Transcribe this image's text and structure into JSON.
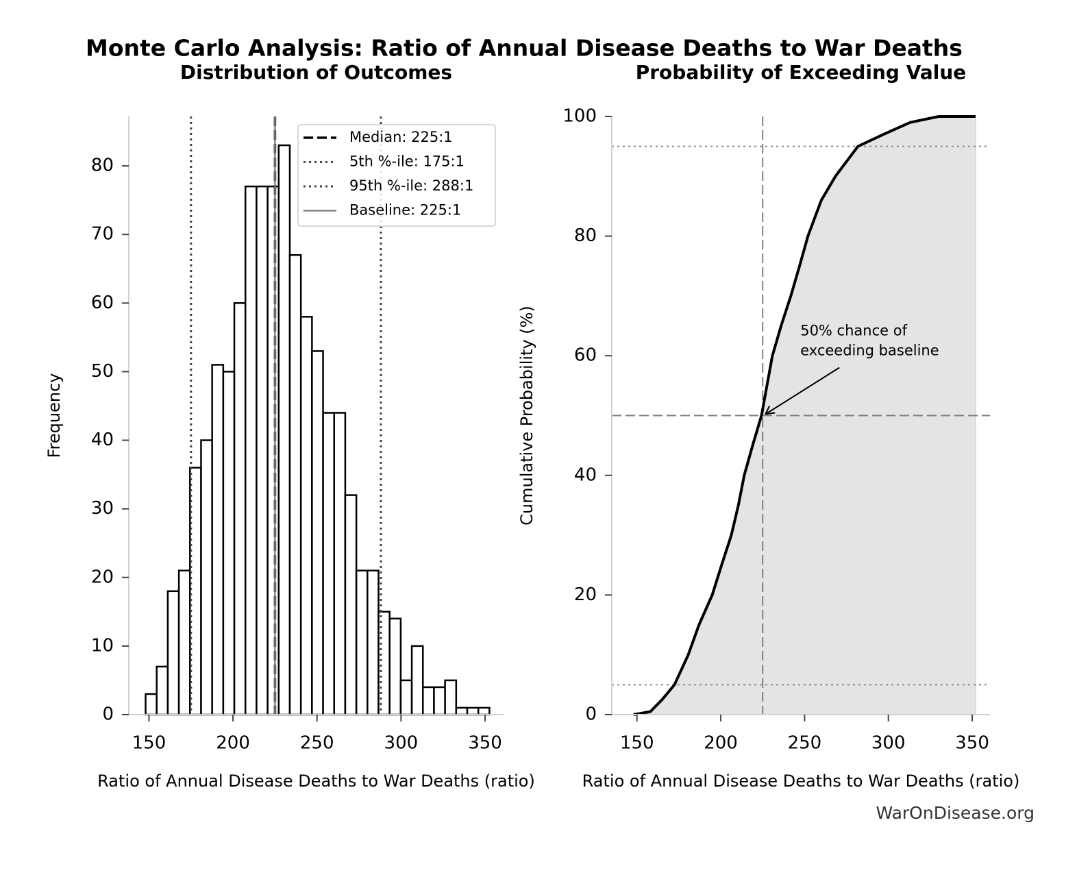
{
  "title": "Monte Carlo Analysis: Ratio of Annual Disease Deaths to War Deaths",
  "source": "WarOnDisease.org",
  "chart_data": [
    {
      "type": "histogram",
      "title": "Distribution of Outcomes",
      "xlabel": "Ratio of Annual Disease Deaths to War Deaths (ratio)",
      "ylabel": "Frequency",
      "bins": [
        148.0,
        154.6,
        161.2,
        167.8,
        174.4,
        181.0,
        187.6,
        194.2,
        200.8,
        207.4,
        214.0,
        220.6,
        227.2,
        233.8,
        240.4,
        247.0,
        253.6,
        260.2,
        266.8,
        273.4,
        280.0,
        286.6,
        293.2,
        299.8,
        306.4,
        313.0,
        319.6,
        326.2,
        332.8,
        339.4,
        346.0,
        352.6
      ],
      "values": [
        3,
        7,
        18,
        21,
        36,
        40,
        51,
        50,
        60,
        77,
        77,
        77,
        83,
        67,
        58,
        53,
        44,
        44,
        32,
        21,
        21,
        15,
        14,
        5,
        10,
        4,
        4,
        5,
        1,
        1,
        1
      ],
      "color": "#ffffff",
      "edgecolor": "#000000",
      "xlim": [
        138,
        361
      ],
      "ylim": [
        0,
        87.2
      ],
      "xticks": [
        150,
        200,
        250,
        300,
        350
      ],
      "yticks": [
        0,
        10,
        20,
        30,
        40,
        50,
        60,
        70,
        80
      ],
      "lines": [
        {
          "name": "Median: 225:1",
          "x": 225,
          "style": "dashed",
          "color": "#000000"
        },
        {
          "name": "5th %-ile: 175:1",
          "x": 175,
          "style": "dotted",
          "color": "#444444"
        },
        {
          "name": "95th %-ile: 288:1",
          "x": 288,
          "style": "dotted",
          "color": "#444444"
        },
        {
          "name": "Baseline: 225:1",
          "x": 225,
          "style": "solid",
          "color": "#808080"
        }
      ],
      "legend": "upper right"
    },
    {
      "type": "line",
      "title": "Probability of Exceeding Value",
      "xlabel": "Ratio of Annual Disease Deaths to War Deaths (ratio)",
      "ylabel": "Cumulative Probability (%)",
      "x": [
        148,
        158,
        165,
        172.4,
        180.6,
        187,
        194.9,
        200.5,
        206.3,
        210.5,
        214,
        219,
        224.3,
        230.8,
        236,
        241.8,
        247,
        252,
        260,
        268.4,
        281.8,
        297,
        313,
        330,
        352
      ],
      "values": [
        0,
        0.5,
        2.5,
        5,
        10,
        15,
        20,
        25,
        30,
        35,
        40,
        45,
        50,
        60,
        65,
        70,
        75,
        80,
        86,
        90,
        95,
        97,
        99,
        100,
        100
      ],
      "color": "#000000",
      "fill": "#e4e4e4",
      "xlim": [
        135,
        360.6
      ],
      "ylim": [
        0,
        100
      ],
      "xticks": [
        150,
        200,
        250,
        300,
        350
      ],
      "yticks": [
        0,
        20,
        40,
        60,
        80,
        100
      ],
      "hlines": [
        {
          "y": 95,
          "style": "dotted",
          "color": "#888888"
        },
        {
          "y": 5,
          "style": "dotted",
          "color": "#888888"
        },
        {
          "y": 50,
          "style": "dashed",
          "color": "#808080"
        }
      ],
      "vlines": [
        {
          "x": 225,
          "style": "dashed",
          "color": "#808080"
        }
      ],
      "annotation": {
        "text": [
          "50% chance of",
          "exceeding baseline"
        ],
        "x": 225,
        "y": 50
      }
    }
  ]
}
